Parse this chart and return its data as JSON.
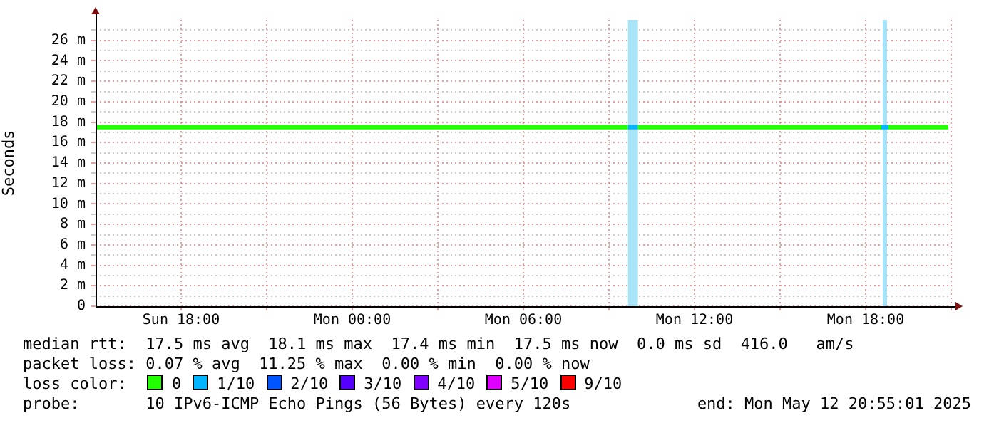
{
  "chart_data": {
    "type": "line",
    "ylabel": "Seconds",
    "xlim": [
      "2025-05-11T15:00",
      "2025-05-12T21:00"
    ],
    "xticks": [
      {
        "value": "2025-05-11T18:00",
        "label": "Sun 18:00"
      },
      {
        "value": "2025-05-11T21:00",
        "label": null
      },
      {
        "value": "2025-05-12T00:00",
        "label": "Mon 00:00"
      },
      {
        "value": "2025-05-12T03:00",
        "label": null
      },
      {
        "value": "2025-05-12T06:00",
        "label": "Mon 06:00"
      },
      {
        "value": "2025-05-12T09:00",
        "label": null
      },
      {
        "value": "2025-05-12T12:00",
        "label": "Mon 12:00"
      },
      {
        "value": "2025-05-12T15:00",
        "label": null
      },
      {
        "value": "2025-05-12T18:00",
        "label": "Mon 18:00"
      },
      {
        "value": "2025-05-12T21:00",
        "label": null
      }
    ],
    "ylim": [
      0,
      28
    ],
    "yticks": [
      {
        "value": 0,
        "label": "0"
      },
      {
        "value": 1,
        "label": null
      },
      {
        "value": 2,
        "label": "2 m"
      },
      {
        "value": 3,
        "label": null
      },
      {
        "value": 4,
        "label": "4 m"
      },
      {
        "value": 5,
        "label": null
      },
      {
        "value": 6,
        "label": "6 m"
      },
      {
        "value": 7,
        "label": null
      },
      {
        "value": 8,
        "label": "8 m"
      },
      {
        "value": 9,
        "label": null
      },
      {
        "value": 10,
        "label": "10 m"
      },
      {
        "value": 11,
        "label": null
      },
      {
        "value": 12,
        "label": "12 m"
      },
      {
        "value": 13,
        "label": null
      },
      {
        "value": 14,
        "label": "14 m"
      },
      {
        "value": 15,
        "label": null
      },
      {
        "value": 16,
        "label": "16 m"
      },
      {
        "value": 17,
        "label": null
      },
      {
        "value": 18,
        "label": "18 m"
      },
      {
        "value": 19,
        "label": null
      },
      {
        "value": 20,
        "label": "20 m"
      },
      {
        "value": 21,
        "label": null
      },
      {
        "value": 22,
        "label": "22 m"
      },
      {
        "value": 23,
        "label": null
      },
      {
        "value": 24,
        "label": "24 m"
      },
      {
        "value": 25,
        "label": null
      },
      {
        "value": 26,
        "label": "26 m"
      },
      {
        "value": 27,
        "label": null
      }
    ],
    "grid": true,
    "marker": "none",
    "line_style": "solid",
    "legend": "bottom",
    "legend_title": "loss color:",
    "bands": [
      {
        "axis": "x",
        "from": "2025-05-12T09:40",
        "to": "2025-05-12T10:01",
        "color": "#a8e4f8"
      },
      {
        "axis": "x",
        "from": "2025-05-12T18:36",
        "to": "2025-05-12T18:45",
        "color": "#a8e4f8"
      }
    ],
    "series": [
      {
        "name": "0",
        "color": "#22ff00",
        "x": [
          "2025-05-11T15:00",
          "2025-05-11T18:00",
          "2025-05-11T21:00",
          "2025-05-12T00:00",
          "2025-05-12T03:00",
          "2025-05-12T06:00",
          "2025-05-12T09:00",
          "2025-05-12T09:40",
          "2025-05-12T09:41",
          "2025-05-12T10:01",
          "2025-05-12T12:00",
          "2025-05-12T15:00",
          "2025-05-12T18:00",
          "2025-05-12T18:33",
          "2025-05-12T18:34",
          "2025-05-12T18:48",
          "2025-05-12T20:54"
        ],
        "values": [
          17.5,
          17.5,
          17.5,
          17.5,
          17.5,
          17.5,
          17.5,
          17.5,
          null,
          17.5,
          17.5,
          17.5,
          17.5,
          17.5,
          null,
          17.5,
          17.5
        ]
      },
      {
        "name": "1/10",
        "color": "#00b4ff",
        "x": [
          "2025-05-12T09:40",
          "2025-05-12T10:01",
          "2025-05-12T10:02",
          "2025-05-12T18:33",
          "2025-05-12T18:48"
        ],
        "values": [
          17.5,
          17.5,
          null,
          17.5,
          17.5
        ]
      },
      {
        "name": "2/10",
        "color": "#0055ff"
      },
      {
        "name": "3/10",
        "color": "#5500ff"
      },
      {
        "name": "4/10",
        "color": "#8000ff"
      },
      {
        "name": "5/10",
        "color": "#dd00ff"
      },
      {
        "name": "9/10",
        "color": "#ff0000"
      }
    ],
    "annotations": [
      "median rtt:  17.5 ms avg  18.1 ms max  17.4 ms min  17.5 ms now  0.0 ms sd  416.0   am/s",
      "packet loss: 0.07 % avg  11.25 % max  0.00 % min  0.00 % now",
      "probe:       10 IPv6-ICMP Echo Pings (56 Bytes) every 120s",
      "end: Mon May 12 20:55:01 2025"
    ]
  }
}
